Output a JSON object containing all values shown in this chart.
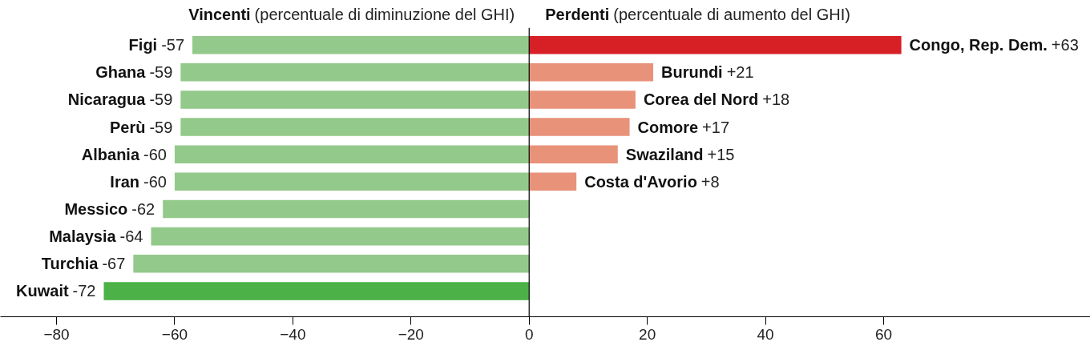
{
  "chart_data": {
    "type": "bar",
    "orientation": "horizontal",
    "stacked": true,
    "categories": [
      "Figi",
      "Ghana",
      "Nicaragua",
      "Perù",
      "Albania",
      "Iran",
      "Messico",
      "Malaysia",
      "Turchia",
      "Kuwait"
    ],
    "series": [
      {
        "name": "Vincenti",
        "colors": [
          "#93c98a",
          "#93c98a",
          "#93c98a",
          "#93c98a",
          "#93c98a",
          "#93c98a",
          "#93c98a",
          "#93c98a",
          "#93c98a",
          "#4cb146"
        ],
        "values": [
          -57,
          -59,
          -59,
          -59,
          -60,
          -60,
          -62,
          -64,
          -67,
          -72
        ],
        "value_labels": [
          "-57",
          "-59",
          "-59",
          "-59",
          "-60",
          "-60",
          "-62",
          "-64",
          "-67",
          "-72"
        ]
      },
      {
        "name": "Perdenti",
        "colors": [
          "#d71f26",
          "#e8927a",
          "#e8927a",
          "#e8927a",
          "#e8927a",
          "#e8927a",
          null,
          null,
          null,
          null
        ],
        "values": [
          63,
          21,
          18,
          17,
          15,
          8,
          null,
          null,
          null,
          null
        ],
        "value_labels": [
          "Congo, Rep. Dem. +63",
          "Burundi +21",
          "Corea del Nord +18",
          "Comore +17",
          "Swaziland +15",
          "Costa d'Avorio +8",
          null,
          null,
          null,
          null
        ]
      }
    ],
    "annotations": [
      "(percentuale di diminuzione del GHI)",
      "(percentuale di aumento del GHI)"
    ],
    "xlim": [
      -89.5,
      95
    ],
    "xticks": [
      -80,
      -60,
      -40,
      -20,
      0,
      20,
      40,
      60
    ],
    "ref_lines": [
      {
        "axis": "x",
        "value": 0,
        "color": "#000000"
      }
    ],
    "grid": false
  }
}
